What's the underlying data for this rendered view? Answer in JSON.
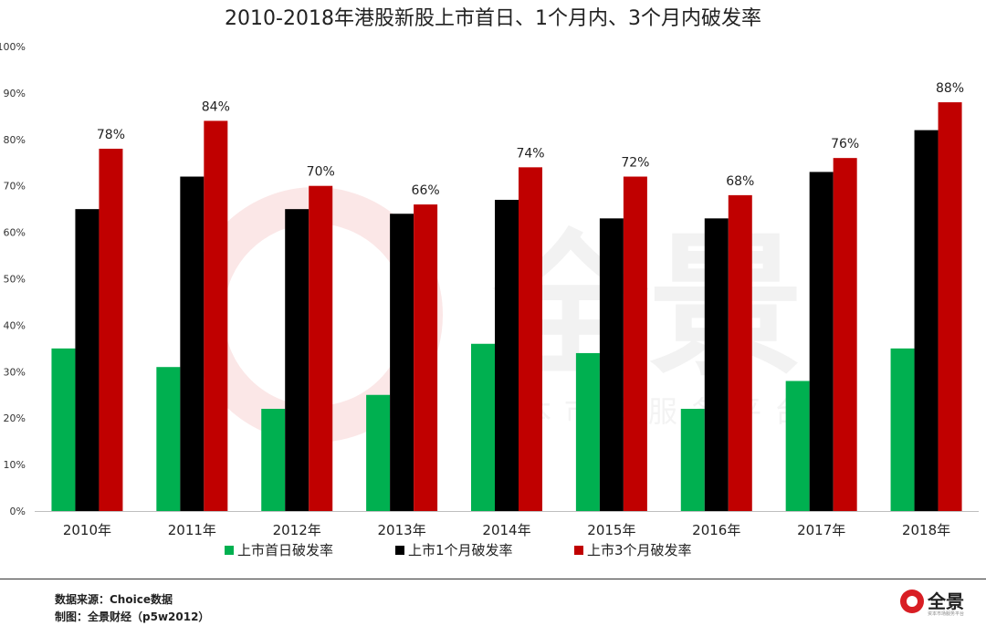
{
  "chart_data": {
    "type": "bar",
    "title": "2010-2018年港股新股上市首日、1个月内、3个月内破发率",
    "categories": [
      "2010年",
      "2011年",
      "2012年",
      "2013年",
      "2014年",
      "2015年",
      "2016年",
      "2017年",
      "2018年"
    ],
    "series": [
      {
        "name": "上市首日破发率",
        "color": "#00b050",
        "values": [
          35,
          31,
          22,
          25,
          36,
          34,
          22,
          28,
          35
        ]
      },
      {
        "name": "上市1个月破发率",
        "color": "#000000",
        "values": [
          65,
          72,
          65,
          64,
          67,
          63,
          63,
          73,
          82
        ]
      },
      {
        "name": "上市3个月破发率",
        "color": "#c00000",
        "values": [
          78,
          84,
          70,
          66,
          74,
          72,
          68,
          76,
          88
        ]
      }
    ],
    "data_labels": [
      "78%",
      "84%",
      "70%",
      "66%",
      "74%",
      "72%",
      "68%",
      "76%",
      "88%"
    ],
    "y_ticks": [
      "0%",
      "10%",
      "20%",
      "30%",
      "40%",
      "50%",
      "60%",
      "70%",
      "80%",
      "90%",
      "100%"
    ],
    "ylim": [
      0,
      100
    ],
    "xlabel": "",
    "ylabel": "",
    "grid": false,
    "legend_position": "bottom"
  },
  "watermark": {
    "brand": "全景",
    "tagline": "资本市场服务平台"
  },
  "footer": {
    "source": "数据来源：Choice数据",
    "credit": "制图：全景财经（p5w2012）"
  },
  "logo": {
    "name": "全景",
    "tagline": "资本市场服务平台"
  }
}
